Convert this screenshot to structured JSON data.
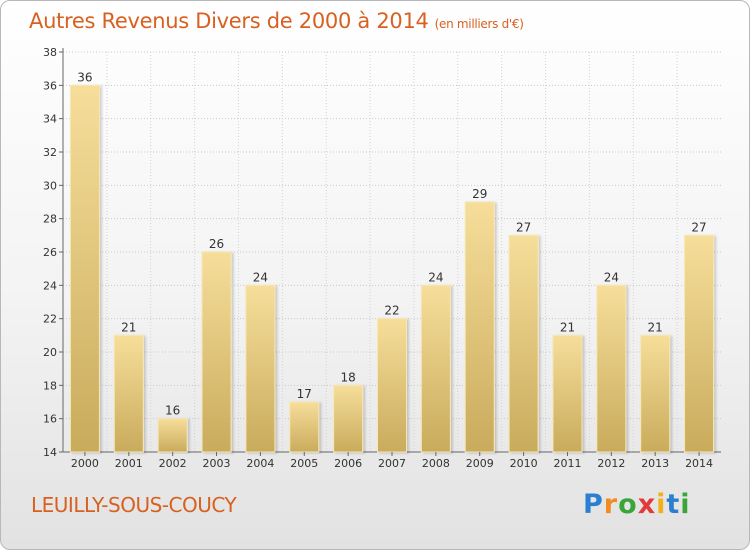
{
  "title": "Autres Revenus Divers de 2000 à 2014",
  "title_unit": "(en milliers d'€)",
  "commune": "LEUILLY-SOUS-COUCY",
  "logo": {
    "letters": [
      "P",
      "r",
      "o",
      "x",
      "i",
      "t",
      "i"
    ],
    "colors": [
      "#2a7fd0",
      "#f28c1f",
      "#3aa63a",
      "#e23a3a",
      "#f2b01f",
      "#2a7fd0",
      "#3aa63a"
    ]
  },
  "colors": {
    "bar_top": "#f6de9a",
    "bar_bottom": "#c9ab5c",
    "title": "#d86020"
  },
  "chart_data": {
    "type": "bar",
    "categories": [
      "2000",
      "2001",
      "2002",
      "2003",
      "2004",
      "2005",
      "2006",
      "2007",
      "2008",
      "2009",
      "2010",
      "2011",
      "2012",
      "2013",
      "2014"
    ],
    "values": [
      36,
      21,
      16,
      26,
      24,
      17,
      18,
      22,
      24,
      29,
      27,
      21,
      24,
      21,
      27
    ],
    "ylim": [
      14,
      38
    ],
    "yticks": [
      14,
      16,
      18,
      20,
      22,
      24,
      26,
      28,
      30,
      32,
      34,
      36,
      38
    ],
    "grid": true,
    "data_labels": true
  }
}
